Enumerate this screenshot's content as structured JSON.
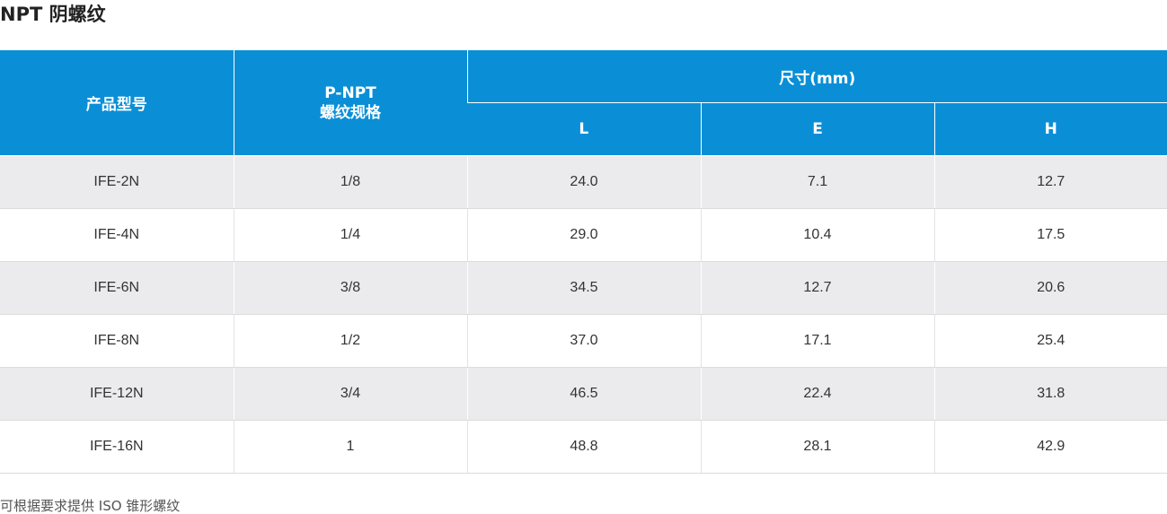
{
  "title": "NPT 阴螺纹",
  "header": {
    "model": "产品型号",
    "thread_line1": "P-NPT",
    "thread_line2": "螺纹规格",
    "dimensions": "尺寸(mm)",
    "L": "L",
    "E": "E",
    "H": "H"
  },
  "rows": [
    {
      "model": "IFE-2N",
      "thread": "1/8",
      "L": "24.0",
      "E": "7.1",
      "H": "12.7"
    },
    {
      "model": "IFE-4N",
      "thread": "1/4",
      "L": "29.0",
      "E": "10.4",
      "H": "17.5"
    },
    {
      "model": "IFE-6N",
      "thread": "3/8",
      "L": "34.5",
      "E": "12.7",
      "H": "20.6"
    },
    {
      "model": "IFE-8N",
      "thread": "1/2",
      "L": "37.0",
      "E": "17.1",
      "H": "25.4"
    },
    {
      "model": "IFE-12N",
      "thread": "3/4",
      "L": "46.5",
      "E": "22.4",
      "H": "31.8"
    },
    {
      "model": "IFE-16N",
      "thread": "1",
      "L": "48.8",
      "E": "28.1",
      "H": "42.9"
    }
  ],
  "footnote": "可根据要求提供 ISO 锥形螺纹",
  "colors": {
    "header_bg": "#0a8fd7",
    "row_alt_bg": "#ebebed"
  }
}
